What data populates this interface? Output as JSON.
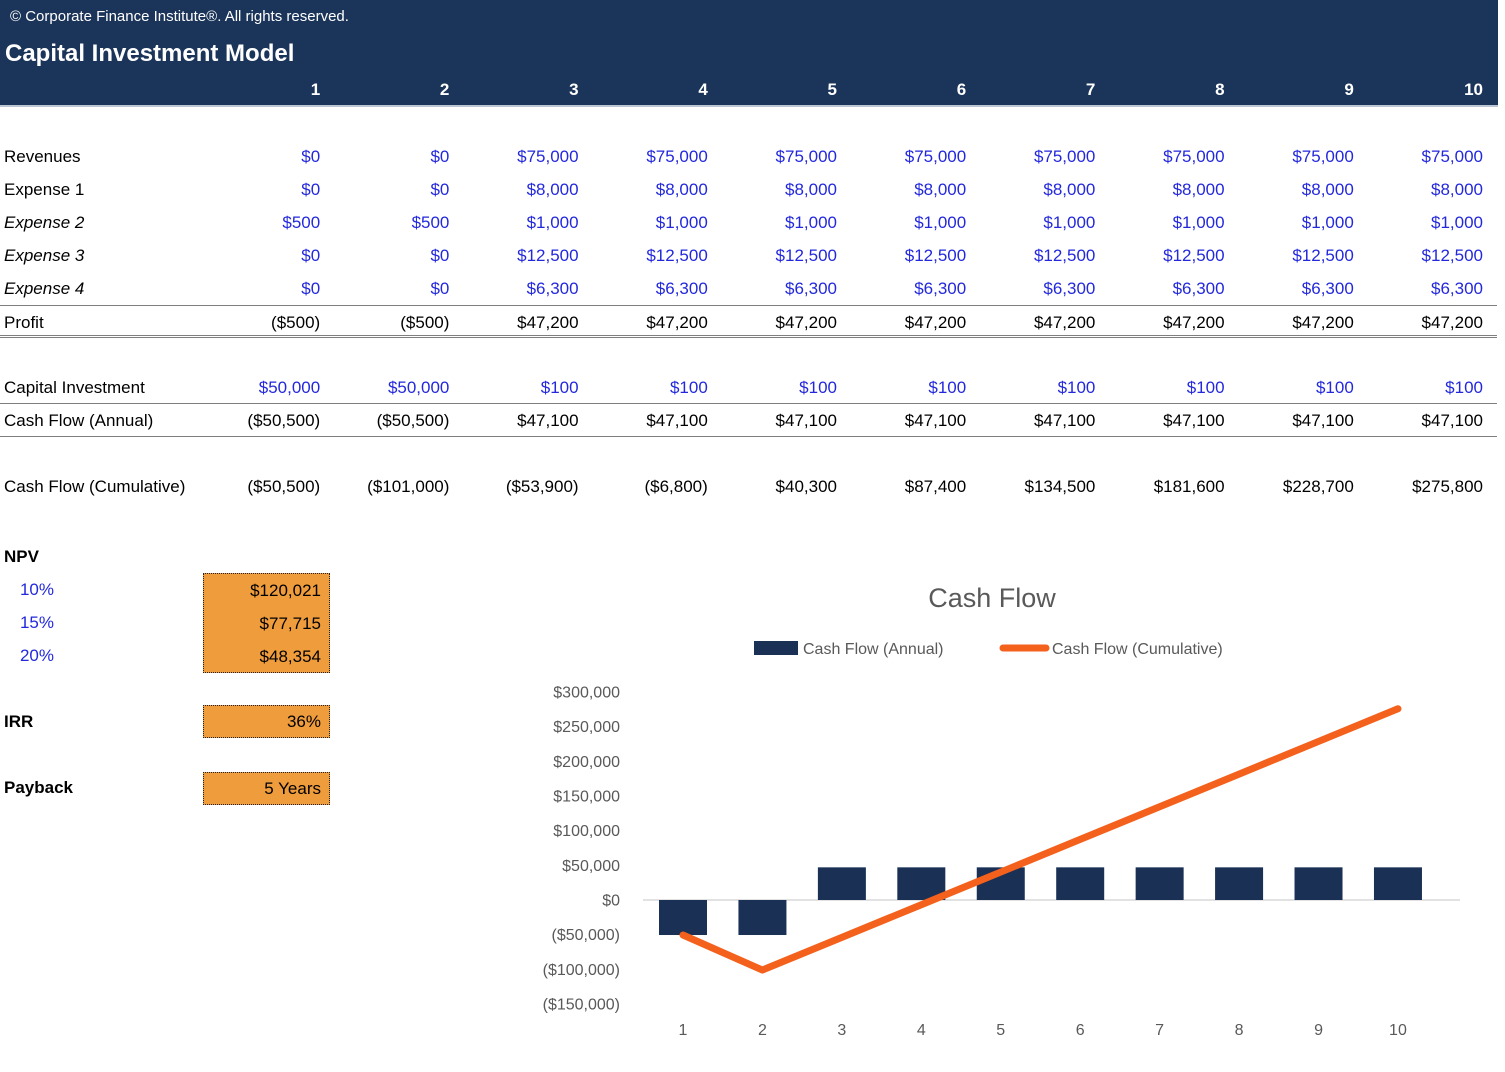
{
  "header": {
    "copyright": "© Corporate Finance Institute®. All rights reserved.",
    "title": "Capital Investment Model",
    "columns": [
      "1",
      "2",
      "3",
      "4",
      "5",
      "6",
      "7",
      "8",
      "9",
      "10"
    ]
  },
  "table": {
    "rows": [
      {
        "label": "Revenues",
        "italic": false,
        "values_color": "blue",
        "border": "none",
        "gap_before": false,
        "values": [
          "$0",
          "$0",
          "$75,000",
          "$75,000",
          "$75,000",
          "$75,000",
          "$75,000",
          "$75,000",
          "$75,000",
          "$75,000"
        ]
      },
      {
        "label": "Expense 1",
        "italic": false,
        "values_color": "blue",
        "border": "none",
        "gap_before": false,
        "values": [
          "$0",
          "$0",
          "$8,000",
          "$8,000",
          "$8,000",
          "$8,000",
          "$8,000",
          "$8,000",
          "$8,000",
          "$8,000"
        ]
      },
      {
        "label": "Expense 2",
        "italic": true,
        "values_color": "blue",
        "border": "none",
        "gap_before": false,
        "values": [
          "$500",
          "$500",
          "$1,000",
          "$1,000",
          "$1,000",
          "$1,000",
          "$1,000",
          "$1,000",
          "$1,000",
          "$1,000"
        ]
      },
      {
        "label": "Expense 3",
        "italic": true,
        "values_color": "blue",
        "border": "none",
        "gap_before": false,
        "values": [
          "$0",
          "$0",
          "$12,500",
          "$12,500",
          "$12,500",
          "$12,500",
          "$12,500",
          "$12,500",
          "$12,500",
          "$12,500"
        ]
      },
      {
        "label": "Expense 4",
        "italic": true,
        "values_color": "blue",
        "border": "none",
        "gap_before": false,
        "values": [
          "$0",
          "$0",
          "$6,300",
          "$6,300",
          "$6,300",
          "$6,300",
          "$6,300",
          "$6,300",
          "$6,300",
          "$6,300"
        ]
      },
      {
        "label": "Profit",
        "italic": false,
        "values_color": "black",
        "border": "total",
        "gap_before": false,
        "values": [
          "($500)",
          "($500)",
          "$47,200",
          "$47,200",
          "$47,200",
          "$47,200",
          "$47,200",
          "$47,200",
          "$47,200",
          "$47,200"
        ]
      },
      {
        "label": "Capital Investment",
        "italic": false,
        "values_color": "blue",
        "border": "underline",
        "gap_before": true,
        "values": [
          "$50,000",
          "$50,000",
          "$100",
          "$100",
          "$100",
          "$100",
          "$100",
          "$100",
          "$100",
          "$100"
        ]
      },
      {
        "label": "Cash Flow (Annual)",
        "italic": false,
        "values_color": "black",
        "border": "underline",
        "gap_before": false,
        "values": [
          "($50,500)",
          "($50,500)",
          "$47,100",
          "$47,100",
          "$47,100",
          "$47,100",
          "$47,100",
          "$47,100",
          "$47,100",
          "$47,100"
        ]
      },
      {
        "label": "Cash Flow (Cumulative)",
        "italic": false,
        "values_color": "black",
        "border": "none",
        "gap_before": true,
        "values": [
          "($50,500)",
          "($101,000)",
          "($53,900)",
          "($6,800)",
          "$40,300",
          "$87,400",
          "$134,500",
          "$181,600",
          "$228,700",
          "$275,800"
        ]
      }
    ]
  },
  "metrics": {
    "npv_label": "NPV",
    "npv_rows": [
      {
        "rate": "10%",
        "value": "$120,021"
      },
      {
        "rate": "15%",
        "value": "$77,715"
      },
      {
        "rate": "20%",
        "value": "$48,354"
      }
    ],
    "irr_label": "IRR",
    "irr_value": "36%",
    "payback_label": "Payback",
    "payback_value": "5 Years"
  },
  "chart_data": {
    "type": "bar+line",
    "title": "Cash Flow",
    "categories": [
      "1",
      "2",
      "3",
      "4",
      "5",
      "6",
      "7",
      "8",
      "9",
      "10"
    ],
    "series": [
      {
        "name": "Cash Flow (Annual)",
        "type": "bar",
        "values": [
          -50500,
          -50500,
          47100,
          47100,
          47100,
          47100,
          47100,
          47100,
          47100,
          47100
        ]
      },
      {
        "name": "Cash Flow (Cumulative)",
        "type": "line",
        "values": [
          -50500,
          -101000,
          -53900,
          -6800,
          40300,
          87400,
          134500,
          181600,
          228700,
          275800
        ]
      }
    ],
    "xlabel": "",
    "ylabel": "",
    "ylim": [
      -150000,
      300000
    ],
    "ytick_step": 50000,
    "ytick_labels": [
      "$300,000",
      "$250,000",
      "$200,000",
      "$150,000",
      "$100,000",
      "$50,000",
      "$0",
      "($50,000)",
      "($100,000)",
      "($150,000)"
    ],
    "legend_position": "top",
    "grid": false
  },
  "colors": {
    "header_navy": "#1B3459",
    "bar_navy": "#1A3055",
    "line_orange": "#F4611C",
    "input_orange_fill": "#EF9C3C",
    "value_blue": "#2328DC",
    "border_gray": "#7F7F7F",
    "chart_text_gray": "#595959",
    "axis_gray": "#D9D9D9"
  }
}
